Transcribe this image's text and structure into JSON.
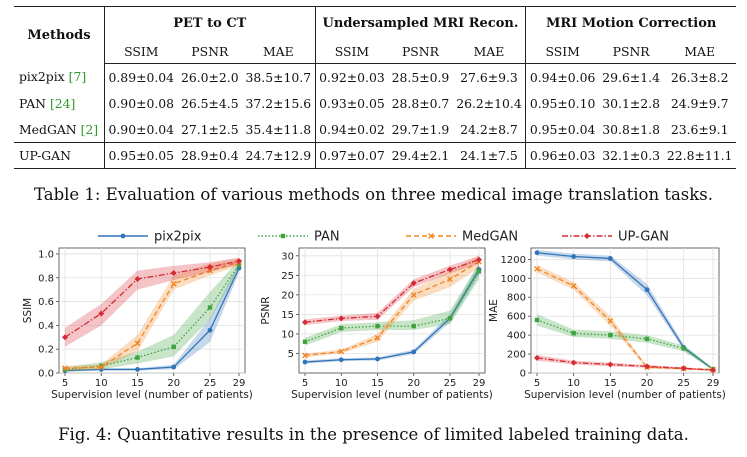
{
  "table": {
    "method_header": "Methods",
    "groups": [
      "PET to CT",
      "Undersampled MRI Recon.",
      "MRI Motion Correction"
    ],
    "metrics": [
      "SSIM",
      "PSNR",
      "MAE"
    ],
    "rows": [
      {
        "name": "pix2pix",
        "cite": "[7]",
        "values": [
          "0.89±0.04",
          "26.0±2.0",
          "38.5±10.7",
          "0.92±0.03",
          "28.5±0.9",
          "27.6±9.3",
          "0.94±0.06",
          "29.6±1.4",
          "26.3±8.2"
        ],
        "bold": [
          false,
          false,
          false,
          false,
          false,
          false,
          false,
          false,
          false
        ]
      },
      {
        "name": "PAN",
        "cite": "[24]",
        "values": [
          "0.90±0.08",
          "26.5±4.5",
          "37.2±15.6",
          "0.93±0.05",
          "28.8±0.7",
          "26.2±10.4",
          "0.95±0.10",
          "30.1±2.8",
          "24.9±9.7"
        ],
        "bold": [
          false,
          false,
          false,
          false,
          false,
          false,
          false,
          false,
          false
        ]
      },
      {
        "name": "MedGAN",
        "cite": "[2]",
        "values": [
          "0.90±0.04",
          "27.1±2.5",
          "35.4±11.8",
          "0.94±0.02",
          "29.7±1.9",
          "24.2±8.7",
          "0.95±0.04",
          "30.8±1.8",
          "23.6±9.1"
        ],
        "bold": [
          false,
          false,
          false,
          false,
          true,
          false,
          false,
          false,
          false
        ]
      },
      {
        "name": "UP-GAN",
        "cite": "",
        "values": [
          "0.95±0.05",
          "28.9±0.4",
          "24.7±12.9",
          "0.97±0.07",
          "29.4±2.1",
          "24.1±7.5",
          "0.96±0.03",
          "32.1±0.3",
          "22.8±11.1"
        ],
        "bold": [
          true,
          true,
          true,
          true,
          false,
          true,
          true,
          true,
          true
        ]
      }
    ],
    "caption": "Table 1: Evaluation of various methods on three medical image translation tasks."
  },
  "chart_data": [
    {
      "type": "line",
      "x": [
        5,
        10,
        15,
        20,
        25,
        29
      ],
      "xlabel": "Supervision level (number of patients)",
      "ylabel": "SSIM",
      "ylim": [
        0,
        1.05
      ],
      "yticks": [
        0.0,
        0.2,
        0.4,
        0.6,
        0.8,
        1.0
      ],
      "grid": true,
      "series": [
        {
          "name": "pix2pix",
          "values": [
            0.02,
            0.03,
            0.03,
            0.05,
            0.36,
            0.88
          ],
          "lower": [
            0.01,
            0.02,
            0.02,
            0.03,
            0.26,
            0.84
          ],
          "upper": [
            0.03,
            0.04,
            0.04,
            0.07,
            0.46,
            0.92
          ]
        },
        {
          "name": "PAN",
          "values": [
            0.03,
            0.06,
            0.13,
            0.22,
            0.55,
            0.91
          ],
          "lower": [
            0.01,
            0.03,
            0.08,
            0.14,
            0.45,
            0.87
          ],
          "upper": [
            0.05,
            0.09,
            0.18,
            0.32,
            0.68,
            0.95
          ]
        },
        {
          "name": "MedGAN",
          "values": [
            0.04,
            0.05,
            0.25,
            0.75,
            0.86,
            0.93
          ],
          "lower": [
            0.02,
            0.03,
            0.18,
            0.7,
            0.82,
            0.9
          ],
          "upper": [
            0.06,
            0.07,
            0.32,
            0.82,
            0.92,
            0.96
          ]
        },
        {
          "name": "UP-GAN",
          "values": [
            0.3,
            0.5,
            0.79,
            0.84,
            0.89,
            0.94
          ],
          "lower": [
            0.22,
            0.4,
            0.7,
            0.78,
            0.85,
            0.91
          ],
          "upper": [
            0.38,
            0.58,
            0.86,
            0.9,
            0.93,
            0.97
          ]
        }
      ]
    },
    {
      "type": "line",
      "x": [
        5,
        10,
        15,
        20,
        25,
        29
      ],
      "xlabel": "Supervision level (number of patients)",
      "ylabel": "PSNR",
      "ylim": [
        0,
        32
      ],
      "yticks": [
        5,
        10,
        15,
        20,
        25,
        30
      ],
      "grid": true,
      "series": [
        {
          "name": "pix2pix",
          "values": [
            2.8,
            3.4,
            3.6,
            5.4,
            14.0,
            26.5
          ],
          "lower": [
            2.4,
            3.0,
            3.2,
            4.8,
            13.0,
            25.0
          ],
          "upper": [
            3.2,
            3.8,
            4.0,
            6.0,
            15.0,
            28.0
          ]
        },
        {
          "name": "PAN",
          "values": [
            8.0,
            11.5,
            12.0,
            12.0,
            14.0,
            26.0
          ],
          "lower": [
            7.0,
            10.5,
            11.0,
            11.0,
            12.5,
            24.0
          ],
          "upper": [
            9.0,
            12.5,
            13.0,
            13.5,
            16.0,
            28.0
          ]
        },
        {
          "name": "MedGAN",
          "values": [
            4.5,
            5.5,
            9.0,
            20.0,
            24.0,
            28.5
          ],
          "lower": [
            4.0,
            5.0,
            8.0,
            18.5,
            22.0,
            27.0
          ],
          "upper": [
            5.0,
            6.0,
            10.0,
            21.5,
            26.0,
            30.0
          ]
        },
        {
          "name": "UP-GAN",
          "values": [
            13.0,
            14.0,
            14.5,
            23.0,
            26.5,
            29.0
          ],
          "lower": [
            12.3,
            13.3,
            13.6,
            22.0,
            25.5,
            28.0
          ],
          "upper": [
            13.7,
            14.7,
            15.4,
            24.0,
            27.5,
            30.0
          ]
        }
      ]
    },
    {
      "type": "line",
      "x": [
        5,
        10,
        15,
        20,
        25,
        29
      ],
      "xlabel": "Supervision level (number of patients)",
      "ylabel": "MAE",
      "ylim": [
        0,
        1320
      ],
      "yticks": [
        0,
        200,
        400,
        600,
        800,
        1000,
        1200
      ],
      "grid": true,
      "series": [
        {
          "name": "pix2pix",
          "values": [
            1270,
            1230,
            1210,
            880,
            270,
            40
          ],
          "lower": [
            1240,
            1200,
            1180,
            820,
            240,
            30
          ],
          "upper": [
            1300,
            1260,
            1240,
            940,
            300,
            50
          ]
        },
        {
          "name": "PAN",
          "values": [
            560,
            420,
            400,
            360,
            260,
            40
          ],
          "lower": [
            500,
            380,
            360,
            320,
            230,
            30
          ],
          "upper": [
            620,
            460,
            440,
            400,
            290,
            50
          ]
        },
        {
          "name": "MedGAN",
          "values": [
            1100,
            920,
            550,
            60,
            45,
            35
          ],
          "lower": [
            1060,
            880,
            500,
            45,
            35,
            25
          ],
          "upper": [
            1140,
            960,
            600,
            75,
            55,
            45
          ]
        },
        {
          "name": "UP-GAN",
          "values": [
            160,
            110,
            90,
            70,
            50,
            30
          ],
          "lower": [
            130,
            90,
            70,
            55,
            40,
            20
          ],
          "upper": [
            190,
            130,
            110,
            85,
            60,
            40
          ]
        }
      ]
    }
  ],
  "legend": [
    {
      "name": "pix2pix",
      "color": "#3274b8",
      "dash": "solid",
      "marker": "circle"
    },
    {
      "name": "PAN",
      "color": "#3ea33e",
      "dash": "dotted",
      "marker": "square"
    },
    {
      "name": "MedGAN",
      "color": "#f28522",
      "dash": "dashed",
      "marker": "x"
    },
    {
      "name": "UP-GAN",
      "color": "#d62a35",
      "dash": "dashdot",
      "marker": "diamond"
    }
  ],
  "figure_caption": "Fig. 4: Quantitative results in the presence of limited labeled training data."
}
